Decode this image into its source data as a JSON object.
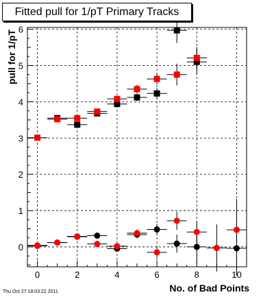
{
  "chart_data": {
    "type": "scatter",
    "title": "Fitted pull for 1/pT Primary Tracks",
    "xlabel": "No. of Bad Points",
    "ylabel": "pull for 1/pT",
    "xlim": [
      -0.5,
      10.5
    ],
    "ylim": [
      -0.55,
      6.05
    ],
    "grid": true,
    "xticks": [
      "0",
      "2",
      "4",
      "6",
      "8",
      "10"
    ],
    "yticks": [
      "0",
      "1",
      "2",
      "3",
      "4",
      "5",
      "6"
    ],
    "series": [
      {
        "color": "#000000",
        "marker": "square",
        "x": [
          1,
          2,
          3,
          4,
          5,
          6,
          7,
          8
        ],
        "y": [
          3.55,
          3.37,
          3.68,
          3.94,
          4.12,
          4.23,
          5.97,
          5.1
        ],
        "yerr": [
          0.05,
          0.08,
          0.06,
          0.07,
          0.1,
          0.15,
          0.35,
          0.35
        ]
      },
      {
        "color": "#ff0000",
        "marker": "square",
        "x": [
          0,
          1,
          2,
          3,
          4,
          5,
          6,
          7,
          8
        ],
        "y": [
          3.01,
          3.52,
          3.55,
          3.73,
          4.08,
          4.35,
          4.63,
          4.75,
          5.21
        ],
        "yerr": [
          0.03,
          0.05,
          0.07,
          0.06,
          0.07,
          0.12,
          0.15,
          0.3,
          0.3
        ]
      },
      {
        "color": "#000000",
        "marker": "circle",
        "x": [
          0,
          1,
          2,
          3,
          4,
          5,
          6,
          7,
          8,
          9,
          10
        ],
        "y": [
          0.03,
          0.12,
          0.28,
          0.31,
          -0.05,
          0.34,
          0.48,
          0.09,
          0.0,
          -0.03,
          -0.04
        ],
        "yerr": [
          0.03,
          0.04,
          0.05,
          0.06,
          0.07,
          0.1,
          0.15,
          0.25,
          0.4,
          0.65,
          0.75
        ]
      },
      {
        "color": "#ff0000",
        "marker": "circle",
        "x": [
          0,
          1,
          2,
          3,
          4,
          5,
          6,
          7,
          8,
          9,
          10
        ],
        "y": [
          0.04,
          0.12,
          0.29,
          0.08,
          0.02,
          0.38,
          -0.15,
          0.72,
          0.41,
          -0.03,
          0.47
        ],
        "yerr": [
          0.03,
          0.04,
          0.05,
          0.05,
          0.06,
          0.1,
          0.15,
          0.25,
          0.3,
          0.0,
          0.85
        ]
      }
    ]
  },
  "footer": {
    "timestamp": "Thu Oct 27 18:03:22 2011"
  }
}
